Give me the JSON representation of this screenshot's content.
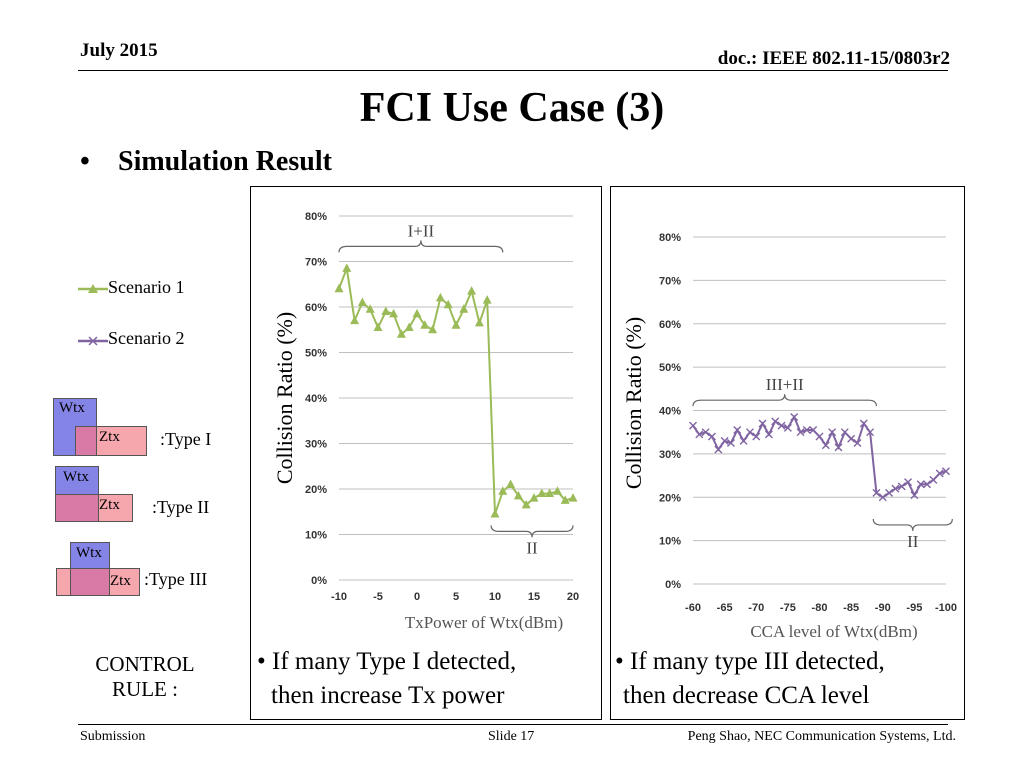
{
  "header": {
    "date": "July 2015",
    "doc": "doc.: IEEE 802.11-15/0803r2"
  },
  "title": "FCI Use Case (3)",
  "bullet": {
    "marker": "•",
    "text": "Simulation Result"
  },
  "legend": {
    "s1": {
      "label": "Scenario 1",
      "color": "#9bbb59"
    },
    "s2": {
      "label": "Scenario 2",
      "color": "#8064a2"
    }
  },
  "types": [
    {
      "wtx": "Wtx",
      "ztx": "Ztx",
      "label": ":Type I"
    },
    {
      "wtx": "Wtx",
      "ztx": "Ztx",
      "label": ":Type II"
    },
    {
      "wtx": "Wtx",
      "ztx": "Ztx",
      "label": ":Type III"
    }
  ],
  "control": {
    "line1": "CONTROL",
    "line2": "RULE :"
  },
  "notes": {
    "left": {
      "line1": "• If  many Type I detected,",
      "line2": "then increase Tx power"
    },
    "right": {
      "line1": "• If many type III detected,",
      "line2": "then decrease CCA level"
    }
  },
  "footer": {
    "left": "Submission",
    "center": "Slide 17",
    "right": "Peng Shao, NEC Communication Systems, Ltd."
  },
  "chart_data": [
    {
      "type": "line",
      "xlabel": "TxPower of Wtx(dBm)",
      "ylabel": "Collision Ratio (%)",
      "ylim": [
        0,
        80
      ],
      "yticks": [
        "0%",
        "10%",
        "20%",
        "30%",
        "40%",
        "50%",
        "60%",
        "70%",
        "80%"
      ],
      "xticks": [
        "-10",
        "-5",
        "0",
        "5",
        "10",
        "15",
        "20"
      ],
      "xlim": [
        -10,
        20
      ],
      "grid": true,
      "series": [
        {
          "name": "Scenario 1",
          "color": "#9bbb59",
          "marker": "triangle",
          "x": [
            -10,
            -9,
            -8,
            -7,
            -6,
            -5,
            -4,
            -3,
            -2,
            -1,
            0,
            1,
            2,
            3,
            4,
            5,
            6,
            7,
            8,
            9,
            10,
            11,
            12,
            13,
            14,
            15,
            16,
            17,
            18,
            19,
            20
          ],
          "y": [
            64,
            68.5,
            57,
            61,
            59.5,
            55.5,
            59,
            58.5,
            54,
            55.5,
            58.5,
            56,
            55,
            62,
            60.5,
            56,
            59.5,
            63.5,
            56.5,
            61.5,
            14.5,
            19.5,
            21,
            18.5,
            16.5,
            18,
            19,
            19,
            19.5,
            17.5,
            18
          ]
        }
      ],
      "annotations": [
        {
          "text": "I+II",
          "from": -10,
          "to": 11,
          "side": "top",
          "at": 72
        },
        {
          "text": "II",
          "from": 9.5,
          "to": 20,
          "side": "bottom",
          "at": 12
        }
      ]
    },
    {
      "type": "line",
      "xlabel": "CCA level of Wtx(dBm)",
      "ylabel": "Collision Ratio (%)",
      "ylim": [
        0,
        80
      ],
      "yticks": [
        "0%",
        "10%",
        "20%",
        "30%",
        "40%",
        "50%",
        "60%",
        "70%",
        "80%"
      ],
      "xticks": [
        "-60",
        "-65",
        "-70",
        "-75",
        "-80",
        "-85",
        "-90",
        "-95",
        "-100"
      ],
      "xlim": [
        -60,
        -100
      ],
      "grid": true,
      "series": [
        {
          "name": "Scenario 2",
          "color": "#8064a2",
          "marker": "x",
          "x": [
            -60,
            -61,
            -62,
            -63,
            -64,
            -65,
            -66,
            -67,
            -68,
            -69,
            -70,
            -71,
            -72,
            -73,
            -74,
            -75,
            -76,
            -77,
            -78,
            -79,
            -80,
            -81,
            -82,
            -83,
            -84,
            -85,
            -86,
            -87,
            -88,
            -89,
            -90,
            -91,
            -92,
            -93,
            -94,
            -95,
            -96,
            -97,
            -98,
            -99,
            -100
          ],
          "y": [
            36.5,
            34.5,
            35,
            34,
            31,
            33,
            32.5,
            35.5,
            33,
            35,
            34,
            37,
            34.5,
            37.5,
            36.5,
            36,
            38.5,
            35,
            35.5,
            35.5,
            34,
            32,
            35,
            31.5,
            35,
            33.5,
            32.5,
            37,
            35,
            21,
            20,
            21,
            22,
            22.5,
            23.5,
            20.5,
            23,
            23,
            24,
            25.5,
            26
          ]
        }
      ],
      "annotations": [
        {
          "text": "III+II",
          "from": -60,
          "to": -89,
          "side": "top",
          "at": 41
        },
        {
          "text": "II",
          "from": -88.5,
          "to": -101,
          "side": "bottom",
          "at": 15
        }
      ]
    }
  ]
}
